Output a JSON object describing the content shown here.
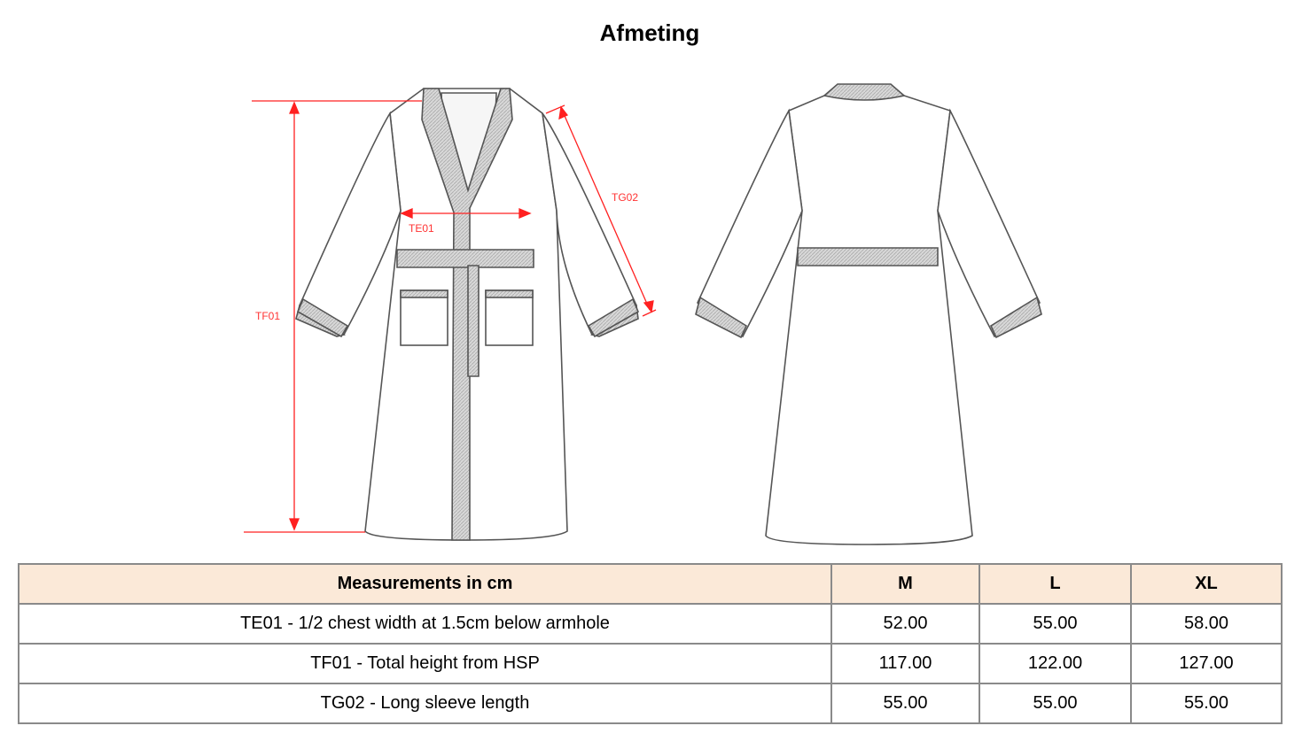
{
  "title": "Afmeting",
  "diagram": {
    "labels": {
      "chest": "TE01",
      "height": "TF01",
      "sleeve": "TG02"
    },
    "measure_color": "#ff2020"
  },
  "table": {
    "header": [
      "Measurements in cm",
      "M",
      "L",
      "XL"
    ],
    "header_bg": "#fbe9d8",
    "rows": [
      [
        "TE01 - 1/2 chest width at 1.5cm below armhole",
        "52.00",
        "55.00",
        "58.00"
      ],
      [
        "TF01 - Total height from HSP",
        "117.00",
        "122.00",
        "127.00"
      ],
      [
        "TG02 - Long sleeve length",
        "55.00",
        "55.00",
        "55.00"
      ]
    ]
  }
}
